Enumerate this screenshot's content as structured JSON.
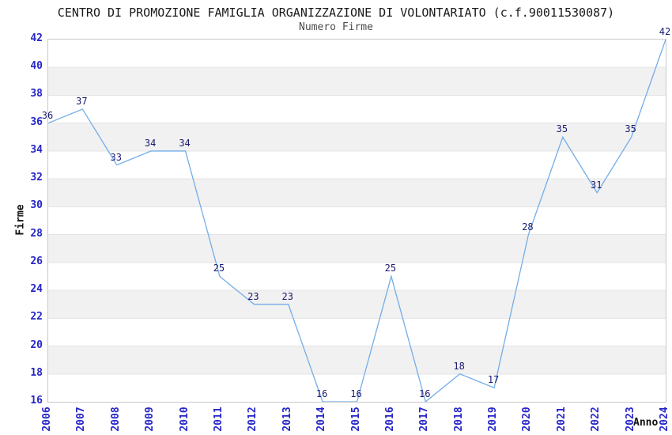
{
  "chart_data": {
    "type": "line",
    "title": "CENTRO DI PROMOZIONE FAMIGLIA ORGANIZZAZIONE DI VOLONTARIATO (c.f.90011530087)",
    "subtitle": "Numero Firme",
    "xlabel": "Anno",
    "ylabel": "Firme",
    "x": [
      2006,
      2007,
      2008,
      2009,
      2010,
      2011,
      2012,
      2013,
      2014,
      2015,
      2016,
      2017,
      2018,
      2019,
      2020,
      2021,
      2022,
      2023,
      2024
    ],
    "values": [
      36,
      37,
      33,
      34,
      34,
      25,
      23,
      23,
      16,
      16,
      25,
      16,
      18,
      17,
      28,
      35,
      31,
      35,
      42
    ],
    "ylim": [
      16,
      42
    ],
    "ytick_step": 2,
    "yticks": [
      16,
      18,
      20,
      22,
      24,
      26,
      28,
      30,
      32,
      34,
      36,
      38,
      40,
      42
    ],
    "grid": "horizontal-alternating-bands",
    "legend": "none",
    "data_labels": "shown above each point",
    "colors": {
      "line": "#73ade8",
      "tick_label": "#2626c9",
      "value_label": "#191970",
      "title": "#1a1a1a",
      "subtitle": "#4c4c4c",
      "axis_title": "#111111",
      "band": "#f1f1f1",
      "band_edge_line": "#e4e4e4",
      "plot_border": "#c9c9c9",
      "background": "#ffffff"
    }
  }
}
